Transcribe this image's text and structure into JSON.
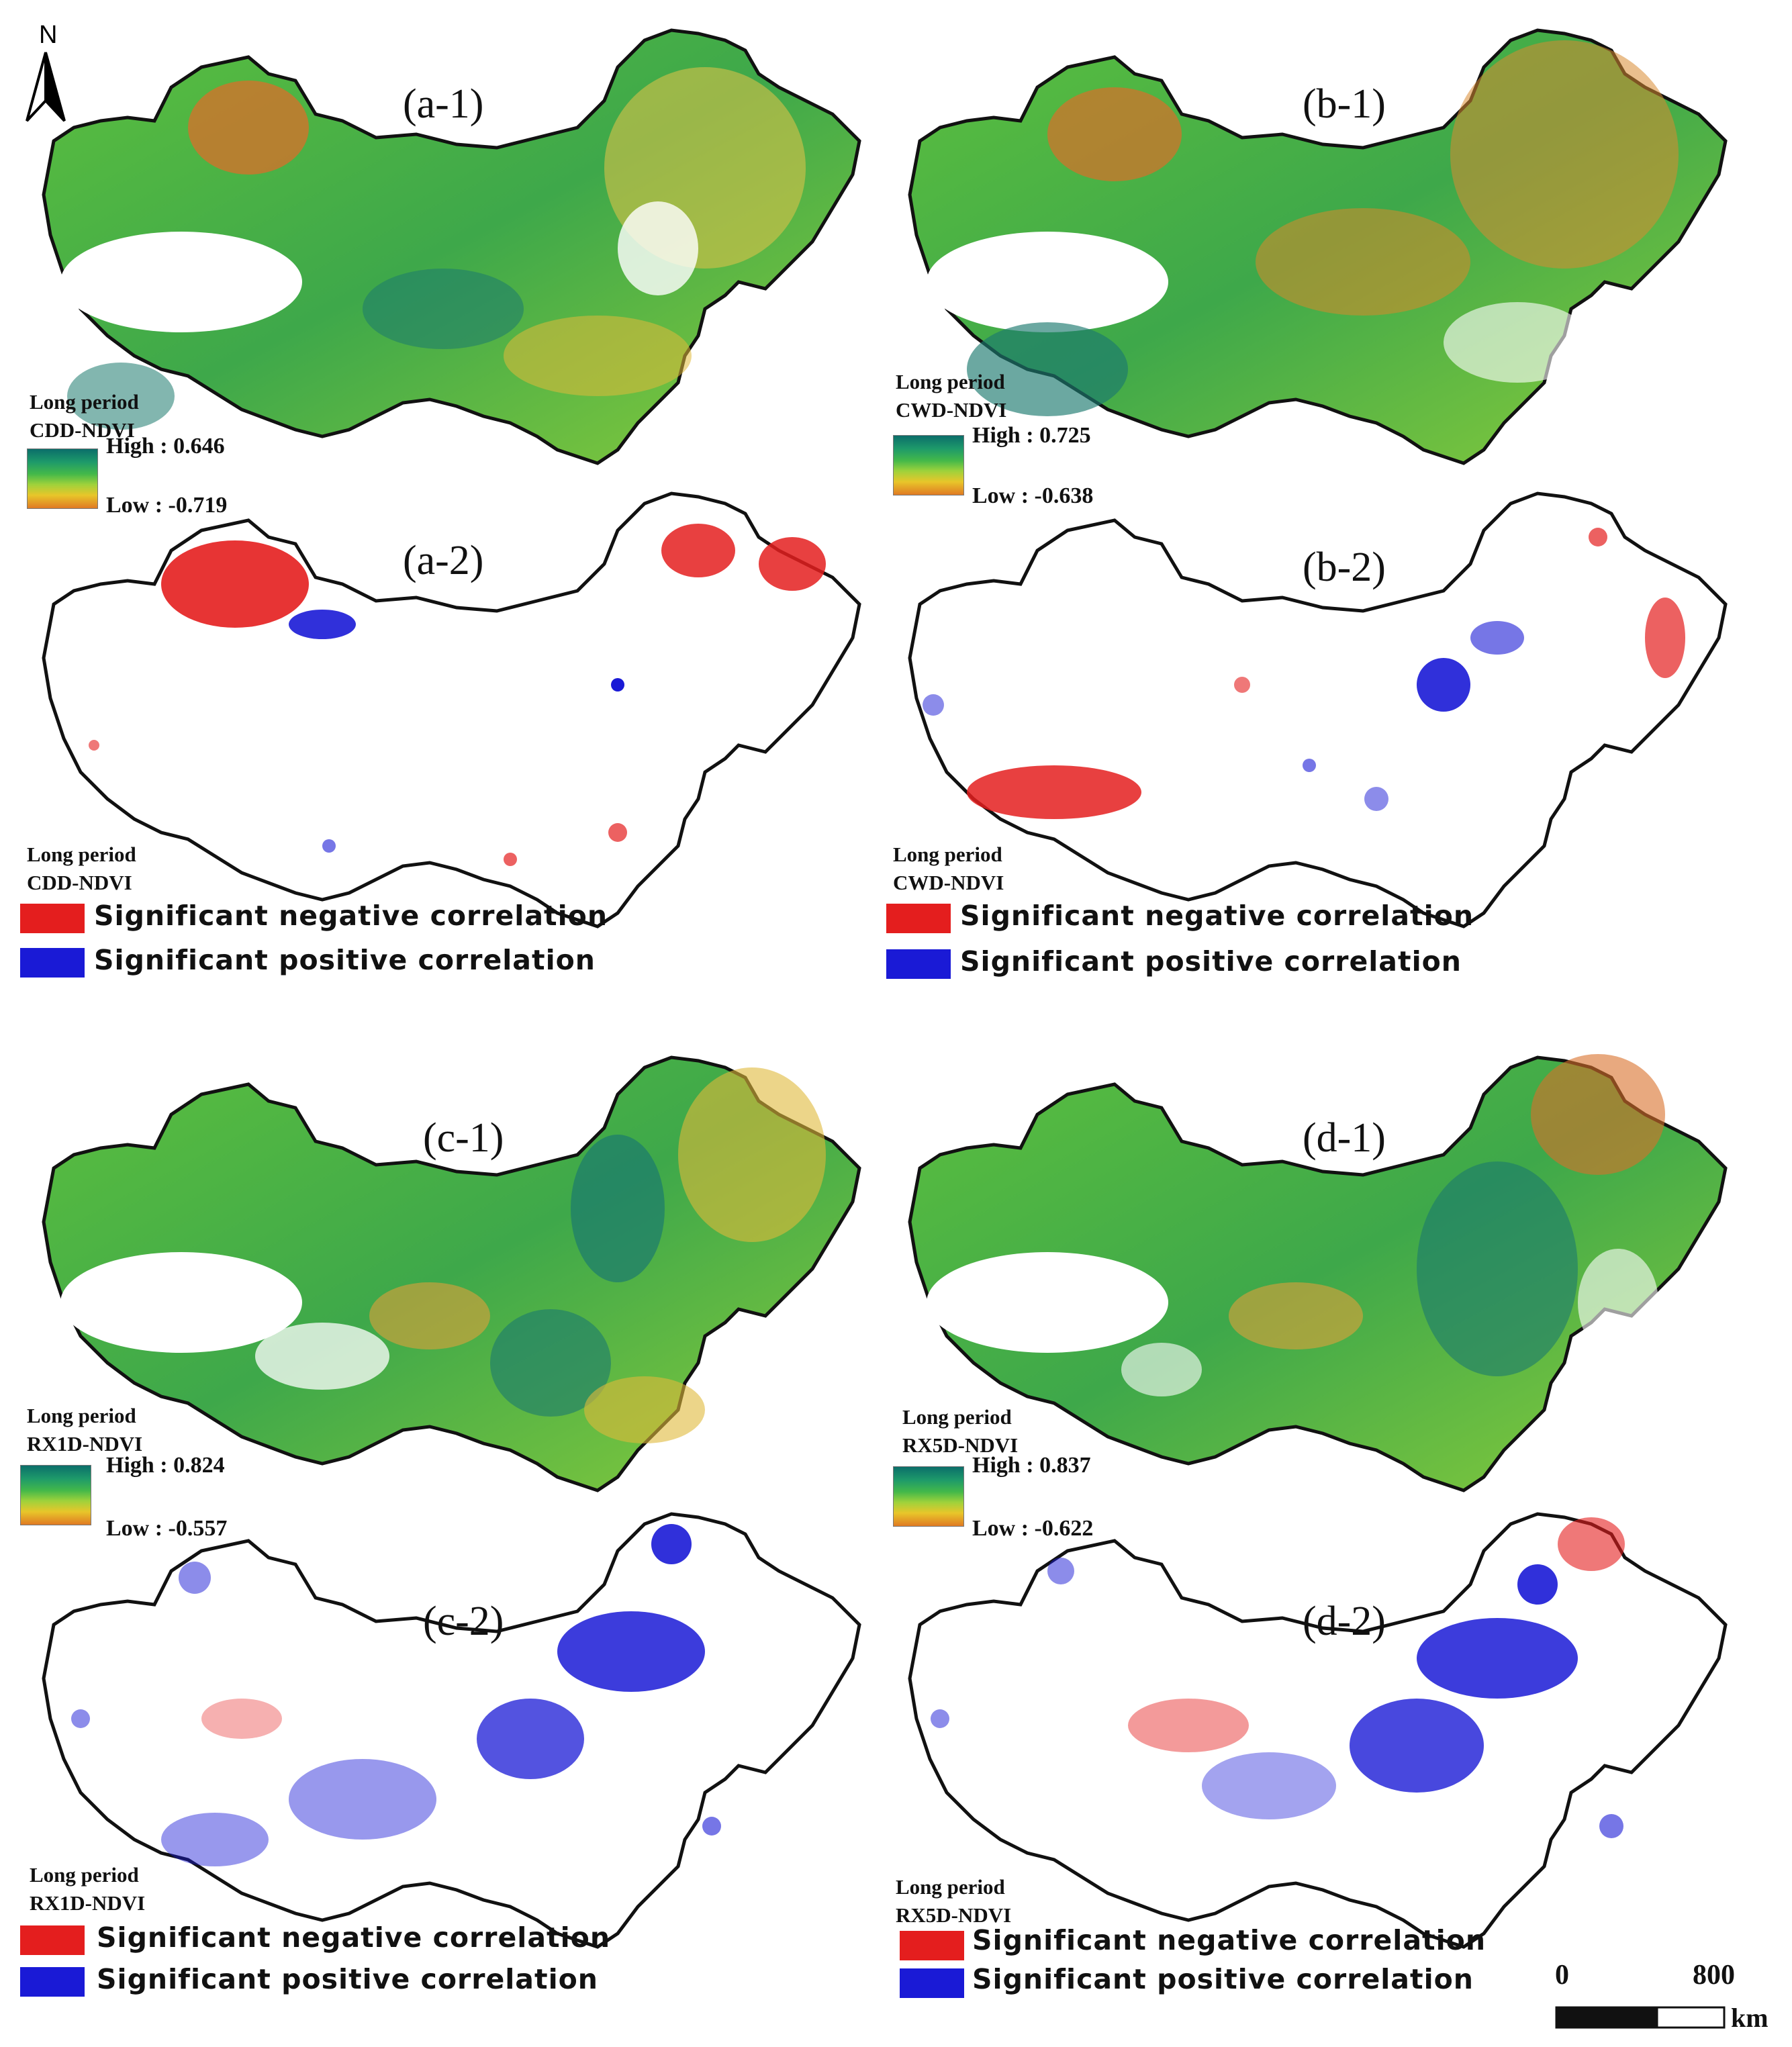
{
  "north_arrow": {
    "label": "N"
  },
  "colors": {
    "ramp_high": "#0b6e6a",
    "ramp_mid": "#43b84a",
    "ramp_low": "#e07a23",
    "significant_negative": "#e41e1e",
    "significant_positive": "#1a1ad6"
  },
  "panels": {
    "a1": {
      "label": "(a-1)",
      "legend_line1": "Long period",
      "legend_line2": "CDD-NDVI",
      "high": "High : 0.646",
      "low": "Low : -0.719"
    },
    "a2": {
      "label": "(a-2)",
      "legend_line1": "Long period",
      "legend_line2": "CDD-NDVI",
      "neg": "Significant negative correlation",
      "pos": "Significant positive correlation"
    },
    "b1": {
      "label": "(b-1)",
      "legend_line1": "Long period",
      "legend_line2": "CWD-NDVI",
      "high": "High : 0.725",
      "low": "Low : -0.638"
    },
    "b2": {
      "label": "(b-2)",
      "legend_line1": "Long period",
      "legend_line2": "CWD-NDVI",
      "neg": "Significant negative correlation",
      "pos": "Significant positive correlation"
    },
    "c1": {
      "label": "(c-1)",
      "legend_line1": "Long period",
      "legend_line2": "RX1D-NDVI",
      "high": "High : 0.824",
      "low": "Low : -0.557"
    },
    "c2": {
      "label": "(c-2)",
      "legend_line1": "Long period",
      "legend_line2": "RX1D-NDVI",
      "neg": "Significant negative correlation",
      "pos": "Significant positive correlation"
    },
    "d1": {
      "label": "(d-1)",
      "legend_line1": "Long period",
      "legend_line2": "RX5D-NDVI",
      "high": "High : 0.837",
      "low": "Low : -0.622"
    },
    "d2": {
      "label": "(d-2)",
      "legend_line1": "Long period",
      "legend_line2": "RX5D-NDVI",
      "neg": "Significant negative correlation",
      "pos": "Significant positive correlation"
    }
  },
  "scale_bar": {
    "start": "0",
    "end": "800",
    "unit": "km"
  }
}
